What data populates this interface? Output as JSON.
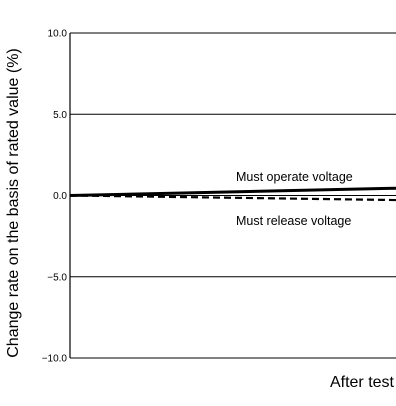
{
  "chart_data": {
    "type": "line",
    "title": "",
    "xlabel": "After test",
    "ylabel": "Change rate on the basis of rated value (%)",
    "ylim": [
      -10.0,
      10.0
    ],
    "yticks": [
      10.0,
      5.0,
      0.0,
      -5.0,
      -10.0
    ],
    "ytick_labels": [
      "10.0",
      "5.0",
      "0.0",
      "−5.0",
      "−10.0"
    ],
    "grid": "horizontal",
    "legend": "none",
    "x": [
      0,
      1
    ],
    "series": [
      {
        "name": "Must operate voltage",
        "values": [
          0.0,
          0.45
        ],
        "style": "solid",
        "color": "#000000"
      },
      {
        "name": "Must release voltage",
        "values": [
          0.0,
          -0.28
        ],
        "style": "dashed",
        "color": "#000000"
      }
    ]
  }
}
